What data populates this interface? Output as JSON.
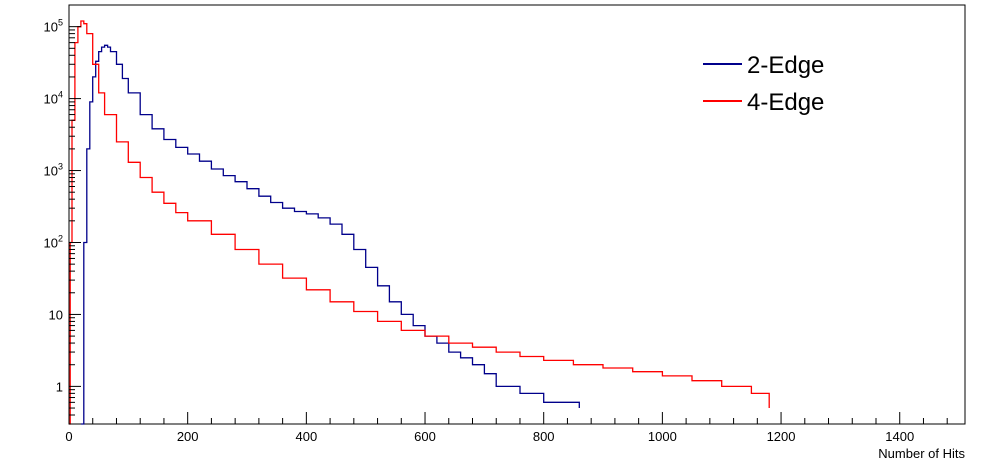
{
  "chart_data": {
    "type": "line",
    "title": "",
    "xlabel": "Number of Hits",
    "ylabel": "",
    "xlim": [
      0,
      1510
    ],
    "ylim": [
      0.3,
      200000
    ],
    "y_scale": "log",
    "grid": false,
    "legend_position": "top-right",
    "x_ticks": [
      0,
      200,
      400,
      600,
      800,
      1000,
      1200,
      1400
    ],
    "y_ticks": [
      {
        "value": 1,
        "label": "1"
      },
      {
        "value": 10,
        "label": "10"
      },
      {
        "value": 100,
        "label": "10",
        "exp": "2"
      },
      {
        "value": 1000,
        "label": "10",
        "exp": "3"
      },
      {
        "value": 10000,
        "label": "10",
        "exp": "4"
      },
      {
        "value": 100000,
        "label": "10",
        "exp": "5"
      }
    ],
    "series": [
      {
        "name": "2-Edge",
        "color": "#00008b",
        "points": [
          [
            20,
            0.3
          ],
          [
            25,
            100
          ],
          [
            30,
            2000
          ],
          [
            35,
            9000
          ],
          [
            40,
            20000
          ],
          [
            45,
            33000
          ],
          [
            50,
            45000
          ],
          [
            55,
            52000
          ],
          [
            60,
            55000
          ],
          [
            65,
            52000
          ],
          [
            70,
            45000
          ],
          [
            80,
            30000
          ],
          [
            90,
            19000
          ],
          [
            100,
            12000
          ],
          [
            120,
            6000
          ],
          [
            140,
            3800
          ],
          [
            160,
            2700
          ],
          [
            180,
            2100
          ],
          [
            200,
            1700
          ],
          [
            220,
            1350
          ],
          [
            240,
            1050
          ],
          [
            260,
            850
          ],
          [
            280,
            700
          ],
          [
            300,
            560
          ],
          [
            320,
            440
          ],
          [
            340,
            360
          ],
          [
            360,
            300
          ],
          [
            380,
            270
          ],
          [
            400,
            250
          ],
          [
            420,
            220
          ],
          [
            440,
            180
          ],
          [
            460,
            130
          ],
          [
            480,
            80
          ],
          [
            500,
            45
          ],
          [
            520,
            25
          ],
          [
            540,
            15
          ],
          [
            560,
            10
          ],
          [
            580,
            7
          ],
          [
            600,
            5
          ],
          [
            620,
            4
          ],
          [
            640,
            3
          ],
          [
            660,
            2.5
          ],
          [
            680,
            2
          ],
          [
            700,
            1.5
          ],
          [
            720,
            1
          ],
          [
            760,
            0.8
          ],
          [
            800,
            0.6
          ],
          [
            860,
            0.5
          ]
        ]
      },
      {
        "name": "4-Edge",
        "color": "#ff0000",
        "points": [
          [
            0,
            0.3
          ],
          [
            2,
            100
          ],
          [
            5,
            5000
          ],
          [
            10,
            60000
          ],
          [
            15,
            100000
          ],
          [
            20,
            120000
          ],
          [
            25,
            110000
          ],
          [
            30,
            80000
          ],
          [
            40,
            30000
          ],
          [
            50,
            12000
          ],
          [
            60,
            6000
          ],
          [
            80,
            2500
          ],
          [
            100,
            1300
          ],
          [
            120,
            800
          ],
          [
            140,
            500
          ],
          [
            160,
            350
          ],
          [
            180,
            260
          ],
          [
            200,
            200
          ],
          [
            240,
            130
          ],
          [
            280,
            80
          ],
          [
            320,
            50
          ],
          [
            360,
            32
          ],
          [
            400,
            22
          ],
          [
            440,
            15
          ],
          [
            480,
            11
          ],
          [
            520,
            8
          ],
          [
            560,
            6
          ],
          [
            600,
            5
          ],
          [
            640,
            4
          ],
          [
            680,
            3.5
          ],
          [
            720,
            3
          ],
          [
            760,
            2.6
          ],
          [
            800,
            2.3
          ],
          [
            850,
            2
          ],
          [
            900,
            1.8
          ],
          [
            950,
            1.6
          ],
          [
            1000,
            1.4
          ],
          [
            1050,
            1.2
          ],
          [
            1100,
            1
          ],
          [
            1150,
            0.8
          ],
          [
            1180,
            0.5
          ]
        ]
      }
    ]
  }
}
